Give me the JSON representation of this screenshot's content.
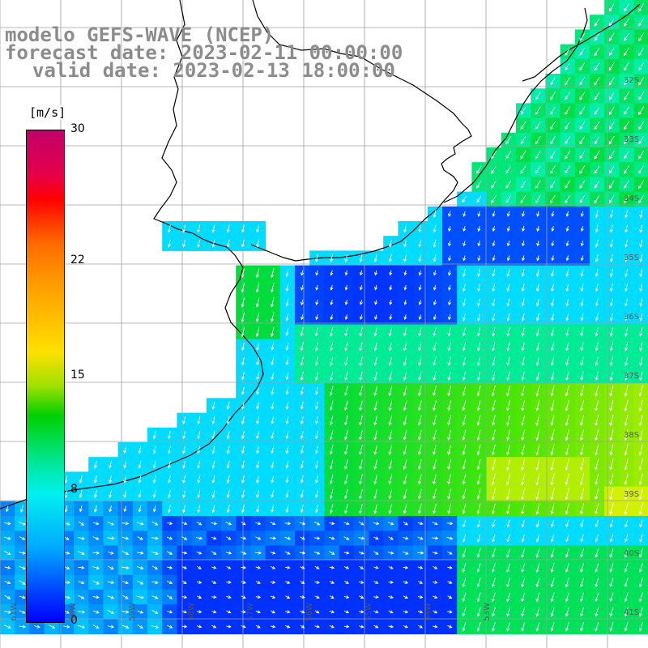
{
  "header": {
    "line1": "modelo GEFS-WAVE (NCEP)",
    "line2": "forecast date: 2023-02-11 00:00:00",
    "line3": "valid date: 2023-02-13 18:00:00"
  },
  "colorbar": {
    "unit": "[m/s]",
    "ticks": [
      {
        "label": "30",
        "value": 30
      },
      {
        "label": "22",
        "value": 22
      },
      {
        "label": "15",
        "value": 15
      },
      {
        "label": "8",
        "value": 8
      },
      {
        "label": "0",
        "value": 0
      }
    ]
  },
  "latitude_labels": [
    "32S",
    "33S",
    "34S",
    "35S",
    "36S",
    "37S",
    "38S",
    "39S",
    "40S",
    "41S"
  ],
  "longitude_labels": [
    "61W",
    "60W",
    "59W",
    "58W",
    "57W",
    "56W",
    "55W",
    "54W",
    "53W"
  ],
  "colors": {
    "land": "#ffffff",
    "coast": "#000000",
    "grid": "#a0a0a0",
    "arrows": "#ffffff",
    "title": "#8c8c8c"
  }
}
